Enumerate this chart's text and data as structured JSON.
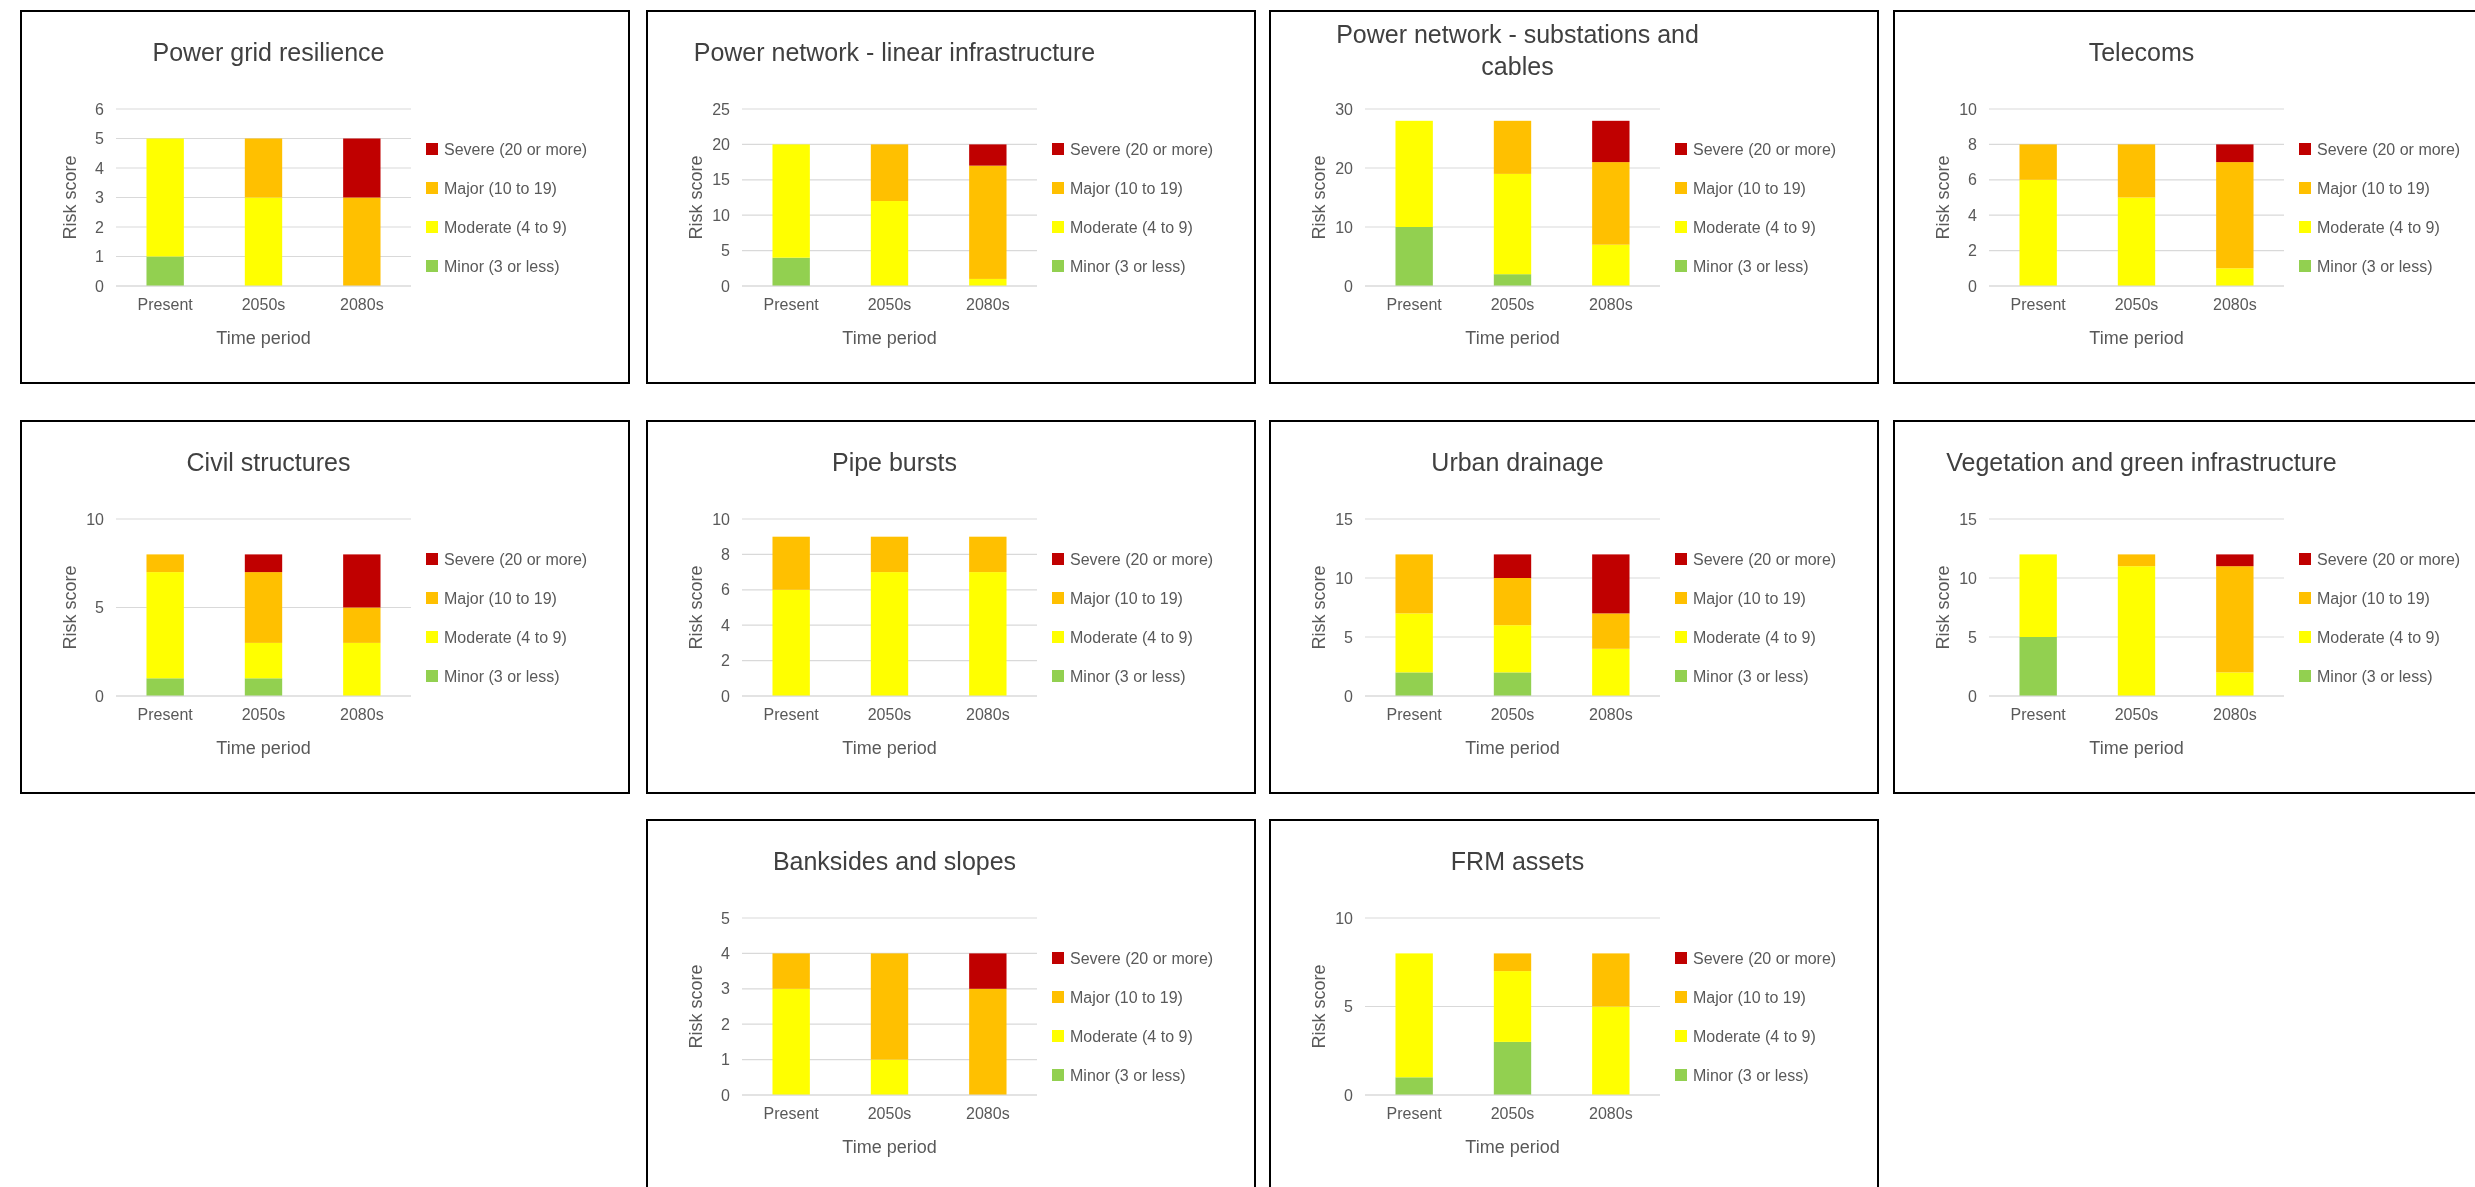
{
  "chart_data": [
    {
      "type": "bar",
      "title": "Power grid resilience",
      "xlabel": "Time period",
      "ylabel": "Risk score",
      "categories": [
        "Present",
        "2050s",
        "2080s"
      ],
      "stacked": true,
      "ylim": [
        0,
        6
      ],
      "yticks": [
        0,
        1,
        2,
        3,
        4,
        5,
        6
      ],
      "grid": "y",
      "legend": "right",
      "series": [
        {
          "name": "Minor (3 or less)",
          "color": "#92d050",
          "values": [
            1,
            0,
            0
          ]
        },
        {
          "name": "Moderate (4 to 9)",
          "color": "#ffff00",
          "values": [
            4,
            3,
            0
          ]
        },
        {
          "name": "Major (10 to 19)",
          "color": "#ffc000",
          "values": [
            0,
            2,
            3
          ]
        },
        {
          "name": "Severe (20 or more)",
          "color": "#c00000",
          "values": [
            0,
            0,
            2
          ]
        }
      ]
    },
    {
      "type": "bar",
      "title": "Power network - linear infrastructure",
      "xlabel": "Time period",
      "ylabel": "Risk score",
      "categories": [
        "Present",
        "2050s",
        "2080s"
      ],
      "stacked": true,
      "ylim": [
        0,
        25
      ],
      "yticks": [
        0,
        5,
        10,
        15,
        20,
        25
      ],
      "grid": "y",
      "legend": "right",
      "series": [
        {
          "name": "Minor (3 or less)",
          "color": "#92d050",
          "values": [
            4,
            0,
            0
          ]
        },
        {
          "name": "Moderate (4 to 9)",
          "color": "#ffff00",
          "values": [
            16,
            12,
            1
          ]
        },
        {
          "name": "Major (10 to 19)",
          "color": "#ffc000",
          "values": [
            0,
            8,
            16
          ]
        },
        {
          "name": "Severe (20 or more)",
          "color": "#c00000",
          "values": [
            0,
            0,
            3
          ]
        }
      ]
    },
    {
      "type": "bar",
      "title": "Power network - substations and cables",
      "xlabel": "Time period",
      "ylabel": "Risk score",
      "categories": [
        "Present",
        "2050s",
        "2080s"
      ],
      "stacked": true,
      "ylim": [
        0,
        30
      ],
      "yticks": [
        0,
        10,
        20,
        30
      ],
      "grid": "y",
      "legend": "right",
      "series": [
        {
          "name": "Minor (3 or less)",
          "color": "#92d050",
          "values": [
            10,
            2,
            0
          ]
        },
        {
          "name": "Moderate (4 to 9)",
          "color": "#ffff00",
          "values": [
            18,
            17,
            7
          ]
        },
        {
          "name": "Major (10 to 19)",
          "color": "#ffc000",
          "values": [
            0,
            9,
            14
          ]
        },
        {
          "name": "Severe (20 or more)",
          "color": "#c00000",
          "values": [
            0,
            0,
            7
          ]
        }
      ]
    },
    {
      "type": "bar",
      "title": "Telecoms",
      "xlabel": "Time period",
      "ylabel": "Risk score",
      "categories": [
        "Present",
        "2050s",
        "2080s"
      ],
      "stacked": true,
      "ylim": [
        0,
        10
      ],
      "yticks": [
        0,
        2,
        4,
        6,
        8,
        10
      ],
      "grid": "y",
      "legend": "right",
      "series": [
        {
          "name": "Minor (3 or less)",
          "color": "#92d050",
          "values": [
            0,
            0,
            0
          ]
        },
        {
          "name": "Moderate (4 to 9)",
          "color": "#ffff00",
          "values": [
            6,
            5,
            1
          ]
        },
        {
          "name": "Major (10 to 19)",
          "color": "#ffc000",
          "values": [
            2,
            3,
            6
          ]
        },
        {
          "name": "Severe (20 or more)",
          "color": "#c00000",
          "values": [
            0,
            0,
            1
          ]
        }
      ]
    },
    {
      "type": "bar",
      "title": "Civil structures",
      "xlabel": "Time period",
      "ylabel": "Risk score",
      "categories": [
        "Present",
        "2050s",
        "2080s"
      ],
      "stacked": true,
      "ylim": [
        0,
        10
      ],
      "yticks": [
        0,
        5,
        10
      ],
      "grid": "y",
      "legend": "right",
      "series": [
        {
          "name": "Minor (3 or less)",
          "color": "#92d050",
          "values": [
            1,
            1,
            0
          ]
        },
        {
          "name": "Moderate (4 to 9)",
          "color": "#ffff00",
          "values": [
            6,
            2,
            3
          ]
        },
        {
          "name": "Major (10 to 19)",
          "color": "#ffc000",
          "values": [
            1,
            4,
            2
          ]
        },
        {
          "name": "Severe (20 or more)",
          "color": "#c00000",
          "values": [
            0,
            1,
            3
          ]
        }
      ]
    },
    {
      "type": "bar",
      "title": "Pipe bursts",
      "xlabel": "Time period",
      "ylabel": "Risk score",
      "categories": [
        "Present",
        "2050s",
        "2080s"
      ],
      "stacked": true,
      "ylim": [
        0,
        10
      ],
      "yticks": [
        0,
        2,
        4,
        6,
        8,
        10
      ],
      "grid": "y",
      "legend": "right",
      "series": [
        {
          "name": "Minor (3 or less)",
          "color": "#92d050",
          "values": [
            0,
            0,
            0
          ]
        },
        {
          "name": "Moderate (4 to 9)",
          "color": "#ffff00",
          "values": [
            6,
            7,
            7
          ]
        },
        {
          "name": "Major (10 to 19)",
          "color": "#ffc000",
          "values": [
            3,
            2,
            2
          ]
        },
        {
          "name": "Severe (20 or more)",
          "color": "#c00000",
          "values": [
            0,
            0,
            0
          ]
        }
      ]
    },
    {
      "type": "bar",
      "title": "Urban drainage",
      "xlabel": "Time period",
      "ylabel": "Risk score",
      "categories": [
        "Present",
        "2050s",
        "2080s"
      ],
      "stacked": true,
      "ylim": [
        0,
        15
      ],
      "yticks": [
        0,
        5,
        10,
        15
      ],
      "grid": "y",
      "legend": "right",
      "series": [
        {
          "name": "Minor (3 or less)",
          "color": "#92d050",
          "values": [
            2,
            2,
            0
          ]
        },
        {
          "name": "Moderate (4 to 9)",
          "color": "#ffff00",
          "values": [
            5,
            4,
            4
          ]
        },
        {
          "name": "Major (10 to 19)",
          "color": "#ffc000",
          "values": [
            5,
            4,
            3
          ]
        },
        {
          "name": "Severe (20 or more)",
          "color": "#c00000",
          "values": [
            0,
            2,
            5
          ]
        }
      ]
    },
    {
      "type": "bar",
      "title": "Vegetation and green infrastructure",
      "xlabel": "Time period",
      "ylabel": "Risk score",
      "categories": [
        "Present",
        "2050s",
        "2080s"
      ],
      "stacked": true,
      "ylim": [
        0,
        15
      ],
      "yticks": [
        0,
        5,
        10,
        15
      ],
      "grid": "y",
      "legend": "right",
      "series": [
        {
          "name": "Minor (3 or less)",
          "color": "#92d050",
          "values": [
            5,
            0,
            0
          ]
        },
        {
          "name": "Moderate (4 to 9)",
          "color": "#ffff00",
          "values": [
            7,
            11,
            2
          ]
        },
        {
          "name": "Major (10 to 19)",
          "color": "#ffc000",
          "values": [
            0,
            1,
            9
          ]
        },
        {
          "name": "Severe (20 or more)",
          "color": "#c00000",
          "values": [
            0,
            0,
            1
          ]
        }
      ]
    },
    {
      "type": "bar",
      "title": "Banksides and slopes",
      "xlabel": "Time period",
      "ylabel": "Risk score",
      "categories": [
        "Present",
        "2050s",
        "2080s"
      ],
      "stacked": true,
      "ylim": [
        0,
        5
      ],
      "yticks": [
        0,
        1,
        2,
        3,
        4,
        5
      ],
      "grid": "y",
      "legend": "right",
      "series": [
        {
          "name": "Minor (3 or less)",
          "color": "#92d050",
          "values": [
            0,
            0,
            0
          ]
        },
        {
          "name": "Moderate (4 to 9)",
          "color": "#ffff00",
          "values": [
            3,
            1,
            0
          ]
        },
        {
          "name": "Major (10 to 19)",
          "color": "#ffc000",
          "values": [
            1,
            3,
            3
          ]
        },
        {
          "name": "Severe (20 or more)",
          "color": "#c00000",
          "values": [
            0,
            0,
            1
          ]
        }
      ]
    },
    {
      "type": "bar",
      "title": "FRM assets",
      "xlabel": "Time period",
      "ylabel": "Risk score",
      "categories": [
        "Present",
        "2050s",
        "2080s"
      ],
      "stacked": true,
      "ylim": [
        0,
        10
      ],
      "yticks": [
        0,
        5,
        10
      ],
      "grid": "y",
      "legend": "right",
      "series": [
        {
          "name": "Minor (3 or less)",
          "color": "#92d050",
          "values": [
            1,
            3,
            0
          ]
        },
        {
          "name": "Moderate (4 to 9)",
          "color": "#ffff00",
          "values": [
            7,
            4,
            5
          ]
        },
        {
          "name": "Major (10 to 19)",
          "color": "#ffc000",
          "values": [
            0,
            1,
            3
          ]
        },
        {
          "name": "Severe (20 or more)",
          "color": "#c00000",
          "values": [
            0,
            0,
            0
          ]
        }
      ]
    }
  ]
}
